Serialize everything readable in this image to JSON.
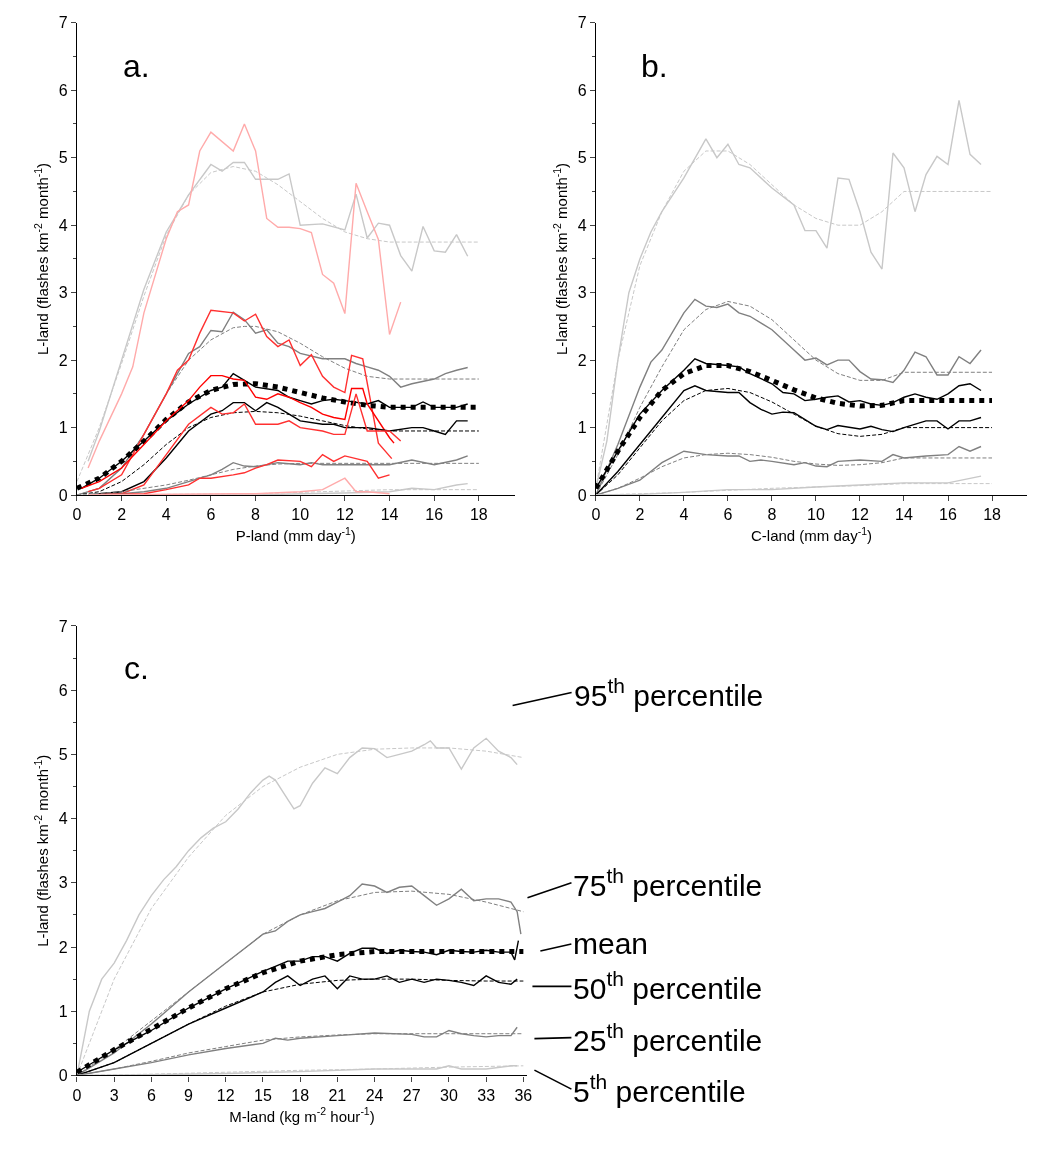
{
  "chart_data": [
    {
      "type": "line",
      "title": "a.",
      "xlabel": "P-land (mm day$^{-1}$)",
      "ylabel": "L-land (flashes km$^{-2}$ month$^{-1}$)",
      "xlim": [
        0,
        19.6
      ],
      "ylim": [
        0,
        7
      ],
      "xticks": [
        0,
        2,
        4,
        6,
        8,
        10,
        12,
        14,
        16,
        18
      ],
      "yticks": [
        0,
        1,
        2,
        3,
        4,
        5,
        6,
        7
      ],
      "series": [
        {
          "color": "#c8c8c8",
          "line_style": "solid",
          "x": [
            0.5,
            1,
            2,
            3,
            4,
            5,
            6,
            6.5,
            7,
            7.5,
            8,
            9,
            9.5,
            10,
            11,
            12,
            12.5,
            13,
            13.5,
            14,
            14.5,
            15,
            15.5,
            16,
            16.5,
            17,
            17.5
          ],
          "values": [
            0.5,
            0.95,
            2.0,
            3.05,
            3.9,
            4.45,
            4.9,
            4.8,
            4.93,
            4.93,
            4.68,
            4.68,
            4.76,
            4.0,
            4.02,
            3.93,
            4.46,
            3.81,
            4.03,
            4.0,
            3.55,
            3.32,
            3.98,
            3.62,
            3.6,
            3.86,
            3.54
          ]
        },
        {
          "color": "#c8c8c8",
          "line_style": "dashed",
          "x": [
            0,
            1,
            2,
            3,
            4,
            5,
            6,
            7,
            8,
            9,
            10,
            11,
            12,
            13,
            14,
            15,
            18
          ],
          "values": [
            0.2,
            1.0,
            1.95,
            2.95,
            3.85,
            4.45,
            4.78,
            4.87,
            4.8,
            4.6,
            4.35,
            4.1,
            3.9,
            3.8,
            3.75,
            3.75,
            3.75
          ]
        },
        {
          "color": "#ffaaaa",
          "line_style": "solid",
          "x": [
            0.5,
            1,
            2,
            2.5,
            3,
            4,
            4.5,
            5,
            5.5,
            6,
            7,
            7.5,
            8,
            8.5,
            9,
            9.5,
            10,
            10.5,
            11,
            11.5,
            12,
            12.5,
            13,
            13.5,
            14,
            14.5
          ],
          "values": [
            0.4,
            0.8,
            1.5,
            1.9,
            2.7,
            3.8,
            4.2,
            4.3,
            5.1,
            5.38,
            5.1,
            5.5,
            5.1,
            4.1,
            3.97,
            3.97,
            3.95,
            3.89,
            3.27,
            3.14,
            2.69,
            4.62,
            4.2,
            3.79,
            2.38,
            2.86
          ]
        },
        {
          "color": "#808080",
          "line_style": "solid",
          "x": [
            0,
            1,
            2,
            3,
            4,
            4.5,
            5,
            5.5,
            6,
            6.5,
            7,
            7.5,
            8,
            8.5,
            9,
            9.5,
            10,
            11,
            12,
            12.5,
            13,
            13.5,
            14,
            14.5,
            15,
            16,
            16.5,
            17,
            17.5
          ],
          "values": [
            0,
            0.1,
            0.4,
            0.9,
            1.5,
            1.8,
            2.1,
            2.2,
            2.44,
            2.42,
            2.71,
            2.6,
            2.4,
            2.45,
            2.25,
            2.2,
            2.1,
            2.02,
            2.02,
            1.95,
            1.9,
            1.85,
            1.76,
            1.6,
            1.65,
            1.72,
            1.8,
            1.85,
            1.89
          ]
        },
        {
          "color": "#808080",
          "line_style": "dashed",
          "x": [
            0,
            1,
            2,
            3,
            4,
            5,
            6,
            7,
            7.5,
            8,
            9,
            10,
            11,
            12,
            13,
            14,
            18
          ],
          "values": [
            0,
            0.1,
            0.4,
            0.9,
            1.5,
            2.0,
            2.3,
            2.48,
            2.5,
            2.5,
            2.42,
            2.25,
            2.05,
            1.88,
            1.76,
            1.72,
            1.72
          ]
        },
        {
          "color": "#ff3030",
          "line_style": "solid",
          "x": [
            0.5,
            1,
            2,
            3,
            4,
            4.5,
            5,
            5.5,
            6,
            7,
            7.5,
            8,
            8.5,
            9,
            9.5,
            10,
            10.5,
            11,
            11.5,
            12,
            12.3,
            12.8,
            13.5,
            14.1
          ],
          "values": [
            0.05,
            0.1,
            0.3,
            0.9,
            1.5,
            1.85,
            2.0,
            2.4,
            2.74,
            2.7,
            2.58,
            2.68,
            2.35,
            2.2,
            2.3,
            1.92,
            2.08,
            1.76,
            1.6,
            1.52,
            2.07,
            2.02,
            0.77,
            0.54
          ]
        },
        {
          "color": "#000000",
          "line_style": "solid",
          "x": [
            0.2,
            1,
            2,
            3,
            4,
            5,
            6,
            6.5,
            7,
            7.5,
            8,
            9,
            9.5,
            10,
            10.5,
            11,
            11.5,
            12,
            13,
            13.5,
            14,
            15,
            15.5,
            16,
            17,
            17.5
          ],
          "values": [
            0.1,
            0.25,
            0.5,
            0.8,
            1.1,
            1.35,
            1.55,
            1.6,
            1.8,
            1.7,
            1.6,
            1.55,
            1.45,
            1.4,
            1.35,
            1.4,
            1.42,
            1.4,
            1.35,
            1.4,
            1.3,
            1.3,
            1.38,
            1.3,
            1.3,
            1.35
          ]
        },
        {
          "color": "#000000",
          "line_style": "dotted",
          "x": [
            0,
            1,
            2,
            3,
            4,
            5,
            6,
            7,
            8,
            9,
            10,
            11,
            12,
            13,
            14,
            18
          ],
          "values": [
            0.1,
            0.25,
            0.5,
            0.8,
            1.12,
            1.38,
            1.55,
            1.64,
            1.65,
            1.6,
            1.52,
            1.44,
            1.38,
            1.33,
            1.3,
            1.3
          ]
        },
        {
          "color": "#ff0000",
          "line_style": "solid",
          "x": [
            0.2,
            1,
            2,
            3,
            4,
            5,
            5.5,
            6,
            6.5,
            7,
            7.5,
            8,
            8.5,
            9,
            9.5,
            10,
            10.5,
            11,
            11.5,
            12,
            12.3,
            12.8,
            13,
            14,
            14.2
          ],
          "values": [
            0.1,
            0.2,
            0.4,
            0.75,
            1.1,
            1.4,
            1.6,
            1.77,
            1.77,
            1.72,
            1.7,
            1.45,
            1.42,
            1.5,
            1.45,
            1.37,
            1.3,
            1.2,
            1.15,
            1.12,
            1.58,
            1.58,
            1.35,
            0.85,
            0.77
          ]
        },
        {
          "color": "#000000",
          "line_style": "solid",
          "x": [
            0.5,
            1,
            2,
            3,
            4,
            5,
            6,
            6.5,
            7,
            7.5,
            8,
            8.5,
            9,
            9.5,
            10,
            11,
            11.5,
            12,
            13,
            14,
            15,
            15.5,
            16,
            16.5,
            17,
            17.5
          ],
          "values": [
            0,
            0.02,
            0.05,
            0.2,
            0.55,
            0.95,
            1.2,
            1.25,
            1.37,
            1.37,
            1.25,
            1.37,
            1.3,
            1.2,
            1.1,
            1.05,
            1.05,
            1.0,
            1.0,
            0.95,
            1.0,
            1.0,
            0.95,
            0.9,
            1.1,
            1.1
          ]
        },
        {
          "color": "#000000",
          "line_style": "dashed",
          "x": [
            0,
            1,
            2,
            3,
            4,
            5,
            6,
            7,
            8,
            9,
            10,
            11,
            12,
            13,
            14,
            18
          ],
          "values": [
            0,
            0.05,
            0.2,
            0.45,
            0.75,
            1.0,
            1.15,
            1.22,
            1.24,
            1.22,
            1.17,
            1.1,
            1.03,
            0.98,
            0.95,
            0.95
          ]
        },
        {
          "color": "#ff3030",
          "line_style": "solid",
          "x": [
            0.5,
            2,
            3,
            4,
            5,
            6,
            6.5,
            7,
            7.5,
            8,
            9,
            9.5,
            10,
            11,
            11.5,
            12,
            12.5,
            13,
            14,
            14.5
          ],
          "values": [
            0,
            0.02,
            0.15,
            0.6,
            1.05,
            1.3,
            1.2,
            1.22,
            1.35,
            1.05,
            1.05,
            1.1,
            1.0,
            0.95,
            0.9,
            0.9,
            1.5,
            0.95,
            0.95,
            0.8
          ]
        },
        {
          "color": "#808080",
          "line_style": "solid",
          "x": [
            0.5,
            2,
            3,
            4,
            5,
            6,
            6.5,
            7,
            7.5,
            8,
            9,
            10,
            10.5,
            11,
            11.5,
            12,
            13,
            14,
            15,
            16,
            17,
            17.5
          ],
          "values": [
            0,
            0.02,
            0.05,
            0.1,
            0.2,
            0.3,
            0.38,
            0.48,
            0.43,
            0.42,
            0.48,
            0.45,
            0.48,
            0.45,
            0.45,
            0.45,
            0.45,
            0.45,
            0.52,
            0.45,
            0.52,
            0.58
          ]
        },
        {
          "color": "#808080",
          "line_style": "dashed",
          "x": [
            0,
            2,
            4,
            5,
            6,
            7,
            8,
            9,
            10,
            18
          ],
          "values": [
            0,
            0.05,
            0.15,
            0.22,
            0.3,
            0.38,
            0.43,
            0.46,
            0.47,
            0.47
          ]
        },
        {
          "color": "#ff3030",
          "line_style": "solid",
          "x": [
            0.5,
            3,
            4,
            5,
            5.5,
            6,
            7,
            7.5,
            8,
            8.5,
            9,
            10,
            10.5,
            11,
            11.5,
            12,
            13,
            13.5,
            14
          ],
          "values": [
            0,
            0.02,
            0.08,
            0.15,
            0.25,
            0.25,
            0.3,
            0.33,
            0.4,
            0.45,
            0.52,
            0.5,
            0.42,
            0.6,
            0.5,
            0.58,
            0.5,
            0.25,
            0.3
          ]
        },
        {
          "color": "#c8c8c8",
          "line_style": "solid",
          "x": [
            0.5,
            8,
            10,
            12,
            14,
            15,
            16,
            17,
            17.5
          ],
          "values": [
            0,
            0,
            0.02,
            0.03,
            0.05,
            0.1,
            0.08,
            0.15,
            0.17
          ]
        },
        {
          "color": "#c8c8c8",
          "line_style": "dashed",
          "x": [
            0,
            8,
            14,
            18
          ],
          "values": [
            0,
            0.02,
            0.08,
            0.08
          ]
        },
        {
          "color": "#ffaaaa",
          "line_style": "solid",
          "x": [
            0.5,
            7,
            8,
            10,
            11,
            12,
            12.5,
            13,
            14
          ],
          "values": [
            0,
            0.02,
            0.02,
            0.05,
            0.08,
            0.25,
            0.05,
            0.05,
            0.02
          ]
        }
      ]
    },
    {
      "type": "line",
      "title": "b.",
      "xlabel": "C-land (mm day$^{-1}$)",
      "ylabel": "L-land (flashes km$^{-2}$ month$^{-1}$)",
      "xlim": [
        0,
        19.6
      ],
      "ylim": [
        0,
        7
      ],
      "xticks": [
        0,
        2,
        4,
        6,
        8,
        10,
        12,
        14,
        16,
        18
      ],
      "yticks": [
        0,
        1,
        2,
        3,
        4,
        5,
        6,
        7
      ],
      "series": [
        {
          "color": "#c8c8c8",
          "line_style": "solid",
          "x": [
            0,
            0.5,
            1,
            1.5,
            2,
            2.5,
            3,
            4,
            5,
            5.5,
            6,
            6.5,
            7,
            8,
            9,
            9.5,
            10,
            10.5,
            11,
            11.5,
            12,
            12.5,
            13,
            13.5,
            14,
            14.5,
            15,
            15.5,
            16,
            16.5,
            17,
            17.5
          ],
          "values": [
            0.1,
            0.8,
            2.0,
            3.0,
            3.5,
            3.9,
            4.2,
            4.7,
            5.28,
            5.0,
            5.2,
            4.9,
            4.85,
            4.55,
            4.3,
            3.92,
            3.92,
            3.66,
            4.7,
            4.68,
            4.2,
            3.6,
            3.35,
            5.07,
            4.85,
            4.2,
            4.75,
            5.02,
            4.9,
            5.85,
            5.05,
            4.9
          ]
        },
        {
          "color": "#c8c8c8",
          "line_style": "dashed",
          "x": [
            0,
            1,
            2,
            3,
            4,
            5,
            6,
            7,
            8,
            9,
            10,
            11,
            12,
            13,
            14,
            18
          ],
          "values": [
            0.1,
            2.0,
            3.4,
            4.2,
            4.8,
            5.1,
            5.1,
            4.9,
            4.6,
            4.3,
            4.1,
            4.0,
            4.0,
            4.2,
            4.5,
            4.5
          ]
        },
        {
          "color": "#808080",
          "line_style": "solid",
          "x": [
            0,
            1,
            2,
            2.5,
            3,
            4,
            4.5,
            5,
            5.5,
            6,
            6.5,
            7,
            8,
            9,
            9.5,
            10,
            10.5,
            11,
            11.5,
            12,
            12.5,
            13,
            13.5,
            14,
            14.5,
            15,
            15.5,
            16,
            16.5,
            17,
            17.5
          ],
          "values": [
            0,
            0.75,
            1.6,
            1.97,
            2.15,
            2.7,
            2.9,
            2.8,
            2.78,
            2.83,
            2.7,
            2.65,
            2.45,
            2.15,
            2.0,
            2.03,
            1.93,
            2.0,
            2.0,
            1.83,
            1.72,
            1.71,
            1.67,
            1.85,
            2.12,
            2.05,
            1.78,
            1.78,
            2.05,
            1.95,
            2.15
          ]
        },
        {
          "color": "#808080",
          "line_style": "dashed",
          "x": [
            0,
            1,
            2,
            3,
            4,
            5,
            6,
            7,
            8,
            9,
            10,
            11,
            12,
            13,
            14,
            18
          ],
          "values": [
            0,
            0.6,
            1.3,
            1.9,
            2.45,
            2.75,
            2.87,
            2.8,
            2.6,
            2.3,
            2.0,
            1.8,
            1.7,
            1.7,
            1.82,
            1.82
          ]
        },
        {
          "color": "#000000",
          "line_style": "solid",
          "x": [
            0,
            1,
            2,
            3,
            4,
            4.5,
            5,
            6,
            6.5,
            7,
            8,
            8.5,
            9,
            9.5,
            10,
            10.5,
            11,
            11.5,
            12,
            12.5,
            13,
            13.5,
            14,
            14.5,
            15,
            15.5,
            16,
            16.5,
            17,
            17.5
          ],
          "values": [
            0.1,
            0.65,
            1.2,
            1.55,
            1.85,
            2.02,
            1.95,
            1.92,
            1.9,
            1.8,
            1.65,
            1.52,
            1.5,
            1.4,
            1.42,
            1.45,
            1.47,
            1.38,
            1.4,
            1.35,
            1.33,
            1.37,
            1.45,
            1.5,
            1.45,
            1.42,
            1.5,
            1.62,
            1.65,
            1.55
          ]
        },
        {
          "color": "#000000",
          "line_style": "dotted",
          "x": [
            0,
            1,
            2,
            3,
            4,
            5,
            6,
            7,
            8,
            9,
            10,
            11,
            12,
            13,
            14,
            18
          ],
          "values": [
            0.1,
            0.65,
            1.15,
            1.55,
            1.8,
            1.92,
            1.92,
            1.83,
            1.7,
            1.56,
            1.44,
            1.36,
            1.32,
            1.33,
            1.4,
            1.4
          ]
        },
        {
          "color": "#000000",
          "line_style": "solid",
          "x": [
            0,
            1,
            2,
            3,
            4,
            4.5,
            5,
            6,
            6.5,
            7,
            7.5,
            8,
            8.5,
            9,
            10,
            10.5,
            11,
            12,
            12.5,
            13,
            13.5,
            14,
            15,
            15.5,
            16,
            16.5,
            17,
            17.5
          ],
          "values": [
            0,
            0.35,
            0.75,
            1.15,
            1.55,
            1.62,
            1.55,
            1.52,
            1.52,
            1.37,
            1.27,
            1.2,
            1.23,
            1.22,
            1.02,
            0.97,
            1.03,
            0.98,
            1.02,
            0.97,
            0.94,
            1.0,
            1.1,
            1.1,
            0.98,
            1.1,
            1.1,
            1.15
          ]
        },
        {
          "color": "#000000",
          "line_style": "dashed",
          "x": [
            0,
            1,
            2,
            3,
            4,
            5,
            6,
            7,
            8,
            9,
            10,
            11,
            12,
            13,
            14,
            18
          ],
          "values": [
            0,
            0.3,
            0.7,
            1.1,
            1.4,
            1.55,
            1.58,
            1.52,
            1.38,
            1.2,
            1.02,
            0.91,
            0.87,
            0.9,
            1.0,
            1.0
          ]
        },
        {
          "color": "#808080",
          "line_style": "solid",
          "x": [
            0,
            1,
            2,
            3,
            4,
            5,
            6,
            6.5,
            7,
            7.5,
            8,
            9,
            9.5,
            10,
            10.5,
            11,
            12,
            13,
            13.5,
            14,
            15,
            16,
            16.5,
            17,
            17.5
          ],
          "values": [
            0,
            0.1,
            0.22,
            0.48,
            0.65,
            0.6,
            0.58,
            0.58,
            0.5,
            0.52,
            0.5,
            0.45,
            0.48,
            0.43,
            0.42,
            0.5,
            0.52,
            0.5,
            0.6,
            0.55,
            0.58,
            0.6,
            0.72,
            0.65,
            0.72
          ]
        },
        {
          "color": "#808080",
          "line_style": "dashed",
          "x": [
            0,
            1,
            2,
            3,
            4,
            5,
            6,
            7,
            8,
            9,
            10,
            11,
            12,
            13,
            14,
            18
          ],
          "values": [
            0,
            0.1,
            0.25,
            0.42,
            0.55,
            0.6,
            0.62,
            0.6,
            0.56,
            0.5,
            0.46,
            0.44,
            0.45,
            0.48,
            0.55,
            0.55
          ]
        },
        {
          "color": "#c8c8c8",
          "line_style": "solid",
          "x": [
            0,
            2,
            4,
            6,
            8,
            10,
            12,
            14,
            16,
            17.5
          ],
          "values": [
            0,
            0.01,
            0.04,
            0.08,
            0.08,
            0.12,
            0.15,
            0.18,
            0.18,
            0.28
          ]
        },
        {
          "color": "#c8c8c8",
          "line_style": "dashed",
          "x": [
            0,
            4,
            8,
            12,
            14,
            18
          ],
          "values": [
            0,
            0.04,
            0.1,
            0.14,
            0.17,
            0.17
          ]
        }
      ]
    },
    {
      "type": "line",
      "title": "c.",
      "xlabel": "M-land (kg m$^{-2}$ hour$^{-1}$)",
      "ylabel": "L-land (flashes km$^{-2}$ month$^{-1}$)",
      "xlim": [
        0,
        36.3
      ],
      "ylim": [
        0,
        7
      ],
      "xticks": [
        0,
        3,
        6,
        9,
        12,
        15,
        18,
        21,
        24,
        27,
        30,
        33,
        36
      ],
      "yticks": [
        0,
        1,
        2,
        3,
        4,
        5,
        6,
        7
      ],
      "annotations": [
        "95$^{th}$ percentile",
        "75$^{th}$ percentile",
        "mean",
        "50$^{th}$ percentile",
        "25$^{th}$ percentile",
        "5$^{th}$ percentile"
      ],
      "series": [
        {
          "color": "#c8c8c8",
          "line_style": "solid",
          "x": [
            0,
            0.5,
            1,
            2,
            3,
            4,
            5,
            6,
            7,
            8,
            9,
            10,
            11,
            12,
            13,
            14,
            15,
            15.5,
            16,
            17,
            17.5,
            18,
            19,
            20,
            21,
            22,
            23,
            24,
            25,
            26,
            27,
            28,
            28.5,
            29,
            30,
            31,
            32,
            33,
            34,
            35,
            35.5
          ],
          "values": [
            0,
            0.5,
            1.0,
            1.5,
            1.75,
            2.1,
            2.5,
            2.8,
            3.05,
            3.25,
            3.5,
            3.7,
            3.85,
            3.95,
            4.15,
            4.4,
            4.6,
            4.66,
            4.6,
            4.3,
            4.15,
            4.2,
            4.55,
            4.79,
            4.7,
            4.95,
            5.1,
            5.09,
            4.95,
            5.0,
            5.05,
            5.15,
            5.21,
            5.1,
            5.1,
            4.77,
            5.1,
            5.25,
            5.05,
            4.95,
            4.84
          ]
        },
        {
          "color": "#c8c8c8",
          "line_style": "dashed",
          "x": [
            0,
            3,
            6,
            9,
            12,
            15,
            18,
            21,
            24,
            27,
            30,
            33,
            36
          ],
          "values": [
            0,
            1.5,
            2.6,
            3.4,
            4.05,
            4.5,
            4.8,
            5.0,
            5.08,
            5.1,
            5.1,
            5.05,
            4.95
          ]
        },
        {
          "color": "#808080",
          "line_style": "solid",
          "x": [
            0,
            3,
            6,
            9,
            12,
            15,
            16,
            17,
            18,
            19,
            20,
            21,
            22,
            23,
            24,
            25,
            26,
            27,
            28,
            29,
            30,
            31,
            32,
            33,
            34,
            35,
            35.5,
            35.8
          ],
          "values": [
            0,
            0.35,
            0.8,
            1.3,
            1.75,
            2.2,
            2.25,
            2.4,
            2.5,
            2.55,
            2.6,
            2.7,
            2.8,
            2.98,
            2.95,
            2.85,
            2.93,
            2.95,
            2.8,
            2.65,
            2.75,
            2.9,
            2.72,
            2.75,
            2.75,
            2.7,
            2.55,
            2.2
          ]
        },
        {
          "color": "#808080",
          "line_style": "dashed",
          "x": [
            0,
            3,
            6,
            9,
            12,
            15,
            18,
            21,
            24,
            27,
            30,
            33,
            36
          ],
          "values": [
            0,
            0.4,
            0.85,
            1.3,
            1.75,
            2.2,
            2.5,
            2.72,
            2.85,
            2.87,
            2.82,
            2.7,
            2.55
          ]
        },
        {
          "color": "#000000",
          "line_style": "solid",
          "x": [
            0,
            3,
            6,
            9,
            12,
            15,
            16,
            17,
            18,
            19,
            20,
            21,
            22,
            23,
            24,
            25,
            26,
            27,
            28,
            29,
            30,
            31,
            32,
            33,
            34,
            35,
            35.3,
            35.6
          ],
          "values": [
            0.05,
            0.4,
            0.7,
            1.05,
            1.35,
            1.62,
            1.7,
            1.78,
            1.78,
            1.85,
            1.85,
            1.78,
            1.9,
            1.98,
            1.98,
            1.9,
            1.95,
            1.93,
            1.92,
            1.88,
            1.95,
            1.93,
            1.92,
            1.95,
            1.92,
            1.92,
            1.8,
            2.1
          ]
        },
        {
          "color": "#000000",
          "line_style": "dotted",
          "x": [
            0,
            3,
            6,
            9,
            12,
            15,
            18,
            21,
            24,
            27,
            30,
            33,
            36
          ],
          "values": [
            0.05,
            0.4,
            0.72,
            1.05,
            1.35,
            1.6,
            1.78,
            1.88,
            1.93,
            1.93,
            1.93,
            1.93,
            1.93
          ]
        },
        {
          "color": "#000000",
          "line_style": "solid",
          "x": [
            0,
            3,
            6,
            9,
            12,
            15,
            16,
            17,
            18,
            19,
            20,
            21,
            22,
            23,
            24,
            25,
            26,
            27,
            28,
            29,
            30,
            31,
            32,
            33,
            34,
            35,
            35.5
          ],
          "values": [
            0,
            0.2,
            0.5,
            0.8,
            1.05,
            1.3,
            1.45,
            1.55,
            1.4,
            1.5,
            1.55,
            1.35,
            1.55,
            1.5,
            1.5,
            1.55,
            1.45,
            1.5,
            1.45,
            1.5,
            1.48,
            1.45,
            1.4,
            1.55,
            1.45,
            1.42,
            1.5
          ]
        },
        {
          "color": "#000000",
          "line_style": "dashed",
          "x": [
            0,
            3,
            6,
            9,
            12,
            15,
            18,
            21,
            24,
            27,
            30,
            33,
            36
          ],
          "values": [
            0,
            0.2,
            0.5,
            0.8,
            1.08,
            1.3,
            1.42,
            1.48,
            1.5,
            1.5,
            1.48,
            1.47,
            1.47
          ]
        },
        {
          "color": "#808080",
          "line_style": "solid",
          "x": [
            0,
            3,
            6,
            9,
            12,
            15,
            16,
            17,
            18,
            21,
            24,
            27,
            28,
            29,
            30,
            31,
            32,
            33,
            34,
            35,
            35.5
          ],
          "values": [
            0,
            0.1,
            0.2,
            0.32,
            0.42,
            0.5,
            0.58,
            0.55,
            0.58,
            0.62,
            0.66,
            0.64,
            0.6,
            0.6,
            0.7,
            0.65,
            0.62,
            0.6,
            0.62,
            0.62,
            0.75
          ]
        },
        {
          "color": "#808080",
          "line_style": "dashed",
          "x": [
            0,
            3,
            6,
            9,
            12,
            15,
            18,
            21,
            24,
            36
          ],
          "values": [
            0,
            0.1,
            0.22,
            0.35,
            0.45,
            0.55,
            0.6,
            0.63,
            0.65,
            0.65
          ]
        },
        {
          "color": "#c8c8c8",
          "line_style": "solid",
          "x": [
            0,
            6,
            12,
            18,
            24,
            29,
            30,
            31,
            33,
            35,
            35.5
          ],
          "values": [
            0,
            0.01,
            0.03,
            0.06,
            0.1,
            0.1,
            0.15,
            0.1,
            0.1,
            0.15,
            0.15
          ]
        },
        {
          "color": "#c8c8c8",
          "line_style": "dashed",
          "x": [
            0,
            6,
            12,
            18,
            24,
            30,
            36
          ],
          "values": [
            0,
            0.02,
            0.05,
            0.08,
            0.1,
            0.13,
            0.15
          ]
        }
      ]
    }
  ]
}
